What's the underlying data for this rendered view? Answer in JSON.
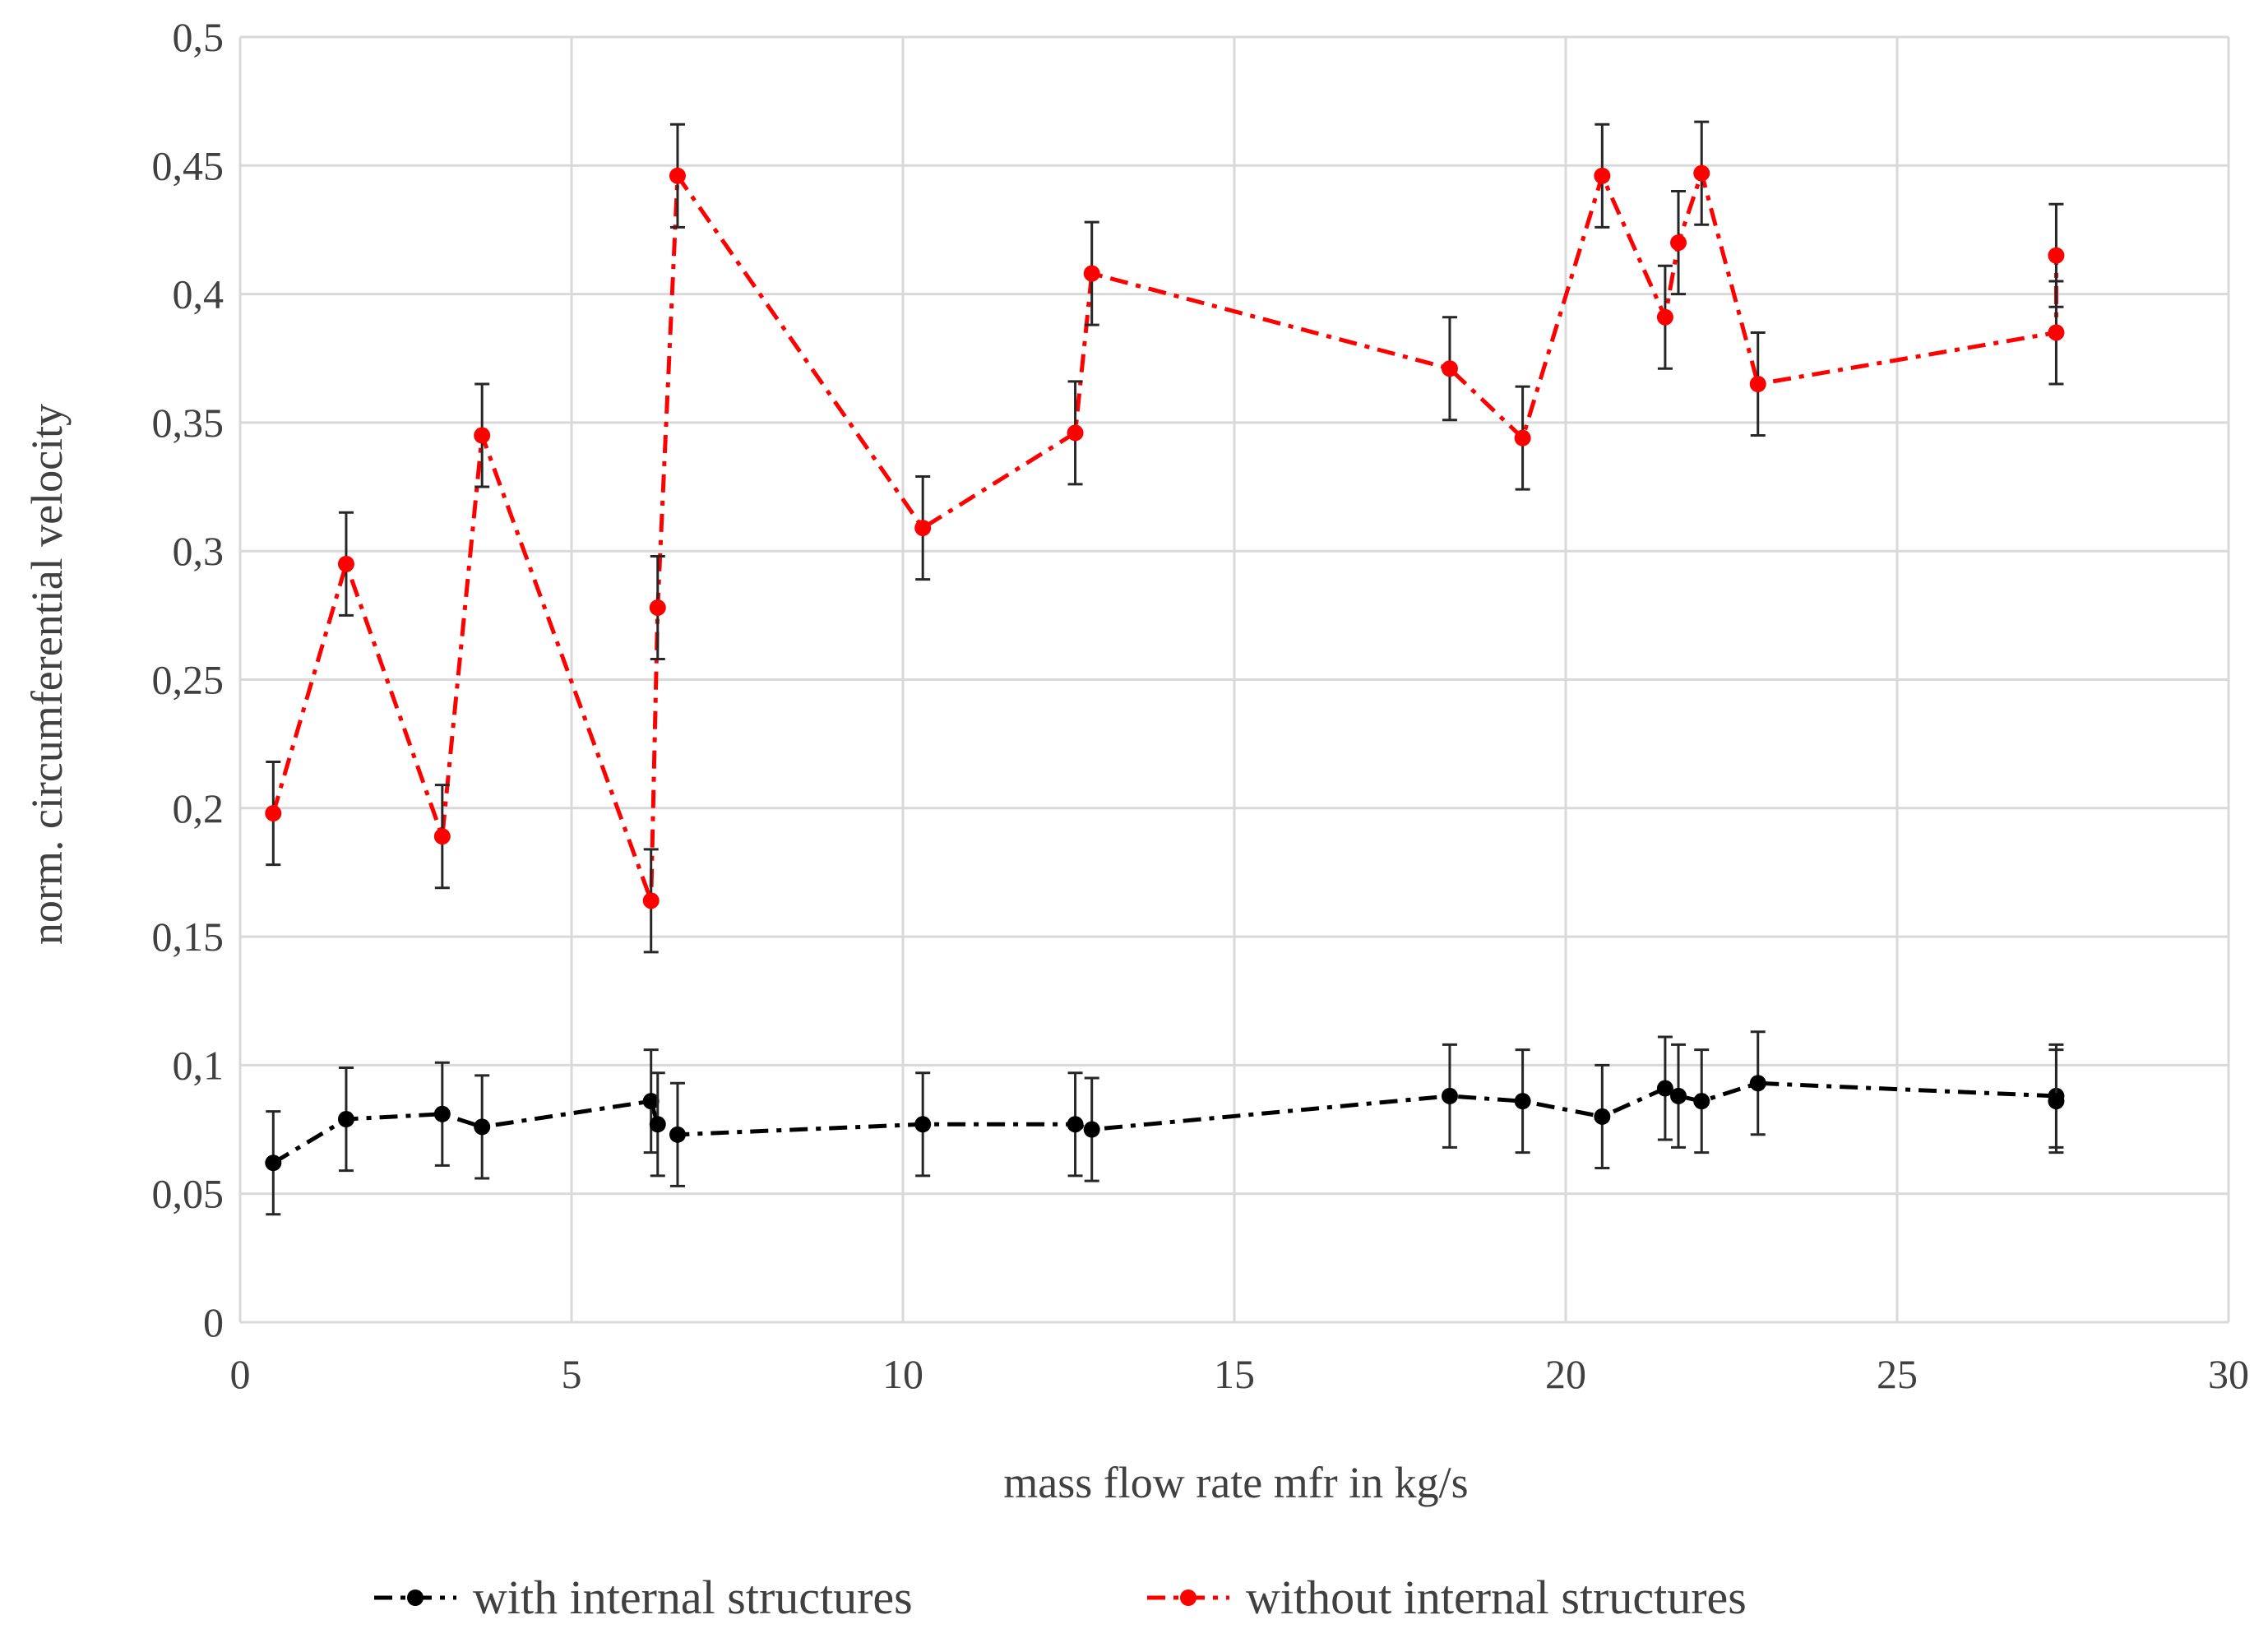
{
  "chart_data": {
    "type": "line",
    "title": "",
    "xlabel": "mass flow rate mfr in kg/s",
    "ylabel": "norm. circumferential  velocity",
    "xlim": [
      0,
      30
    ],
    "ylim": [
      0,
      0.5
    ],
    "x_ticks": [
      0,
      5,
      10,
      15,
      20,
      25,
      30
    ],
    "x_tick_labels": [
      "0",
      "5",
      "10",
      "15",
      "20",
      "25",
      "30"
    ],
    "y_ticks": [
      0,
      0.05,
      0.1,
      0.15,
      0.2,
      0.25,
      0.3,
      0.35,
      0.4,
      0.45,
      0.5
    ],
    "y_tick_labels": [
      "0",
      "0,05",
      "0,1",
      "0,15",
      "0,2",
      "0,25",
      "0,3",
      "0,35",
      "0,4",
      "0,45",
      "0,5"
    ],
    "grid": true,
    "legend_position": "bottom",
    "error_bar": 0.02,
    "series": [
      {
        "name": "with internal structures",
        "color": "#000000",
        "line_style": "dash-dot",
        "points": [
          [
            0.5,
            0.062
          ],
          [
            1.6,
            0.079
          ],
          [
            3.05,
            0.081
          ],
          [
            3.65,
            0.076
          ],
          [
            6.2,
            0.086
          ],
          [
            6.3,
            0.077
          ],
          [
            6.6,
            0.073
          ],
          [
            10.3,
            0.077
          ],
          [
            12.6,
            0.077
          ],
          [
            12.85,
            0.075
          ],
          [
            18.25,
            0.088
          ],
          [
            19.35,
            0.086
          ],
          [
            20.55,
            0.08
          ],
          [
            21.5,
            0.091
          ],
          [
            21.7,
            0.088
          ],
          [
            22.05,
            0.086
          ],
          [
            22.9,
            0.093
          ],
          [
            27.4,
            0.088
          ],
          [
            27.4,
            0.086
          ]
        ]
      },
      {
        "name": "without internal structures",
        "color": "#ff0000",
        "line_style": "dash-dot",
        "points": [
          [
            0.5,
            0.198
          ],
          [
            1.6,
            0.295
          ],
          [
            3.05,
            0.189
          ],
          [
            3.65,
            0.345
          ],
          [
            6.2,
            0.164
          ],
          [
            6.3,
            0.278
          ],
          [
            6.6,
            0.446
          ],
          [
            10.3,
            0.309
          ],
          [
            12.6,
            0.346
          ],
          [
            12.85,
            0.408
          ],
          [
            18.25,
            0.371
          ],
          [
            19.35,
            0.344
          ],
          [
            20.55,
            0.446
          ],
          [
            21.5,
            0.391
          ],
          [
            21.7,
            0.42
          ],
          [
            22.05,
            0.447
          ],
          [
            22.9,
            0.365
          ],
          [
            27.4,
            0.385
          ],
          [
            27.4,
            0.415
          ]
        ]
      }
    ]
  }
}
